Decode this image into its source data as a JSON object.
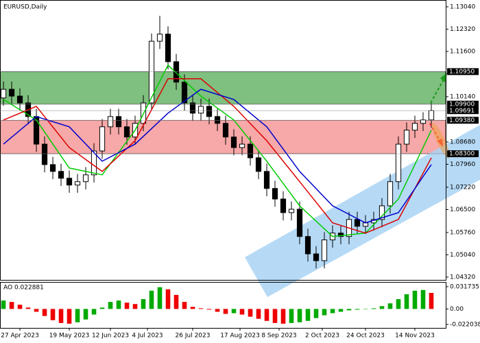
{
  "chart_data": {
    "type": "candlestick",
    "title": "EURUSD,Daily",
    "xlim": [
      -0.42,
      53.75
    ],
    "ylim": [
      1.0423,
      1.1326
    ],
    "open": [
      1.101,
      1.1038,
      1.1016,
      1.0994,
      1.095,
      1.0861,
      1.0795,
      1.0773,
      1.0751,
      1.0729,
      1.074,
      1.0762,
      1.0839,
      1.0917,
      1.095,
      1.0917,
      1.0884,
      1.0928,
      1.0994,
      1.1193,
      1.1216,
      1.1127,
      1.1061,
      1.0994,
      1.0961,
      1.0983,
      1.095,
      1.0928,
      1.0884,
      1.085,
      1.0861,
      1.0817,
      1.0773,
      1.0718,
      1.0684,
      1.064,
      1.0651,
      1.0563,
      1.0507,
      1.0485,
      1.0552,
      1.0574,
      1.0563,
      1.0618,
      1.0596,
      1.0607,
      1.0618,
      1.0662,
      1.074,
      1.0861,
      1.0906,
      1.0928,
      1.0939
    ],
    "high": [
      1.1063,
      1.1063,
      1.1041,
      1.1019,
      1.0975,
      1.0886,
      1.082,
      1.0798,
      1.0776,
      1.0765,
      1.0787,
      1.0864,
      1.0942,
      1.0975,
      1.0975,
      1.0942,
      1.0953,
      1.1019,
      1.1218,
      1.1275,
      1.1241,
      1.1152,
      1.1086,
      1.1019,
      1.1008,
      1.1008,
      1.0975,
      1.0953,
      1.0909,
      1.0886,
      1.0886,
      1.0842,
      1.0798,
      1.0743,
      1.0709,
      1.0676,
      1.0676,
      1.0588,
      1.0532,
      1.0577,
      1.0599,
      1.0599,
      1.0643,
      1.0643,
      1.0632,
      1.0643,
      1.0687,
      1.0765,
      1.0886,
      1.0931,
      1.0953,
      1.0964,
      1.0994
    ],
    "low": [
      1.0985,
      1.0991,
      1.0969,
      1.0925,
      1.0836,
      1.077,
      1.0748,
      1.0726,
      1.0704,
      1.0704,
      1.0715,
      1.0737,
      1.0814,
      1.0892,
      1.0892,
      1.0859,
      1.0859,
      1.0903,
      1.0969,
      1.1168,
      1.1102,
      1.1036,
      1.0969,
      1.0936,
      1.0936,
      1.0925,
      1.0903,
      1.0859,
      1.0825,
      1.0825,
      1.0792,
      1.0748,
      1.0693,
      1.0659,
      1.0615,
      1.0615,
      1.0538,
      1.0482,
      1.046,
      1.046,
      1.0527,
      1.0538,
      1.0538,
      1.0571,
      1.0571,
      1.0582,
      1.0593,
      1.0637,
      1.0715,
      1.0836,
      1.0881,
      1.0903,
      1.0914
    ],
    "close": [
      1.1038,
      1.1016,
      1.0994,
      1.095,
      1.0861,
      1.0795,
      1.0773,
      1.0751,
      1.0729,
      1.074,
      1.0762,
      1.0839,
      1.0917,
      1.095,
      1.0917,
      1.0884,
      1.0928,
      1.0994,
      1.1193,
      1.1216,
      1.1127,
      1.1061,
      1.0994,
      1.0961,
      1.0983,
      1.095,
      1.0928,
      1.0884,
      1.085,
      1.0861,
      1.0817,
      1.0773,
      1.0718,
      1.0684,
      1.064,
      1.0651,
      1.0563,
      1.0507,
      1.0485,
      1.0552,
      1.0574,
      1.0563,
      1.0618,
      1.0596,
      1.0607,
      1.0618,
      1.0662,
      1.074,
      1.0861,
      1.0906,
      1.0928,
      1.0939,
      1.0969
    ],
    "series": [
      {
        "color": "#00cc00",
        "x": [
          0,
          4,
          8,
          12,
          16,
          20,
          24,
          28,
          32,
          36,
          40,
          44,
          48,
          52
        ],
        "values": [
          1.1005,
          1.0939,
          1.0784,
          1.0762,
          1.0906,
          1.1116,
          1.1016,
          1.0939,
          1.0806,
          1.0662,
          1.0563,
          1.0574,
          1.0684,
          1.0906
        ]
      },
      {
        "color": "#dd0000",
        "x": [
          0,
          4,
          8,
          12,
          16,
          20,
          24,
          28,
          32,
          36,
          40,
          44,
          48,
          52
        ],
        "values": [
          1.0939,
          1.0983,
          1.085,
          1.0773,
          1.0872,
          1.1072,
          1.1072,
          1.0983,
          1.0872,
          1.074,
          1.0607,
          1.0574,
          1.0618,
          1.0817
        ]
      },
      {
        "color": "#0000cc",
        "x": [
          0,
          4,
          8,
          12,
          16,
          20,
          24,
          28,
          32,
          36,
          40,
          44,
          48,
          52
        ],
        "values": [
          1.0861,
          1.095,
          1.0917,
          1.0806,
          1.0861,
          1.0961,
          1.1038,
          1.1005,
          1.0917,
          1.0773,
          1.0662,
          1.0607,
          1.064,
          1.0795
        ]
      }
    ],
    "zones": [
      {
        "range": [
          1.099,
          1.1095
        ],
        "color": "#7fbf7f"
      },
      {
        "range": [
          1.083,
          1.0938
        ],
        "color": "#f7a8a8"
      }
    ],
    "yticks": [
      {
        "value": 1.1304,
        "label": "1.13040"
      },
      {
        "value": 1.1232,
        "label": "1.12320"
      },
      {
        "value": 1.116,
        "label": "1.11600"
      },
      {
        "value": 1.1014,
        "label": "1.10140"
      },
      {
        "value": 1.0868,
        "label": "1.08680"
      },
      {
        "value": 1.0796,
        "label": "1.07960"
      },
      {
        "value": 1.0722,
        "label": "1.07220"
      },
      {
        "value": 1.065,
        "label": "1.06500"
      },
      {
        "value": 1.0576,
        "label": "1.05760"
      },
      {
        "value": 1.0504,
        "label": "1.05040"
      },
      {
        "value": 1.0432,
        "label": "1.04320"
      }
    ],
    "levels": [
      {
        "value": 1.1095,
        "label": "1.10950"
      },
      {
        "value": 1.099,
        "label": "1.09900"
      },
      {
        "value": 1.09691,
        "label": "1.09691"
      },
      {
        "value": 1.0938,
        "label": "1.09380"
      },
      {
        "value": 1.083,
        "label": "1.08300"
      }
    ],
    "xticks": [
      {
        "value": 2,
        "label": "27 Apr 2023"
      },
      {
        "value": 8,
        "label": "19 May 2023"
      },
      {
        "value": 13,
        "label": "12 Jun 2023"
      },
      {
        "value": 17.5,
        "label": "4 Jul 2023"
      },
      {
        "value": 23,
        "label": "26 Jul 2023"
      },
      {
        "value": 28.75,
        "label": "17 Aug 2023"
      },
      {
        "value": 33.5,
        "label": "8 Sep 2023"
      },
      {
        "value": 38.75,
        "label": "2 Oct 2023"
      },
      {
        "value": 44,
        "label": "24 Oct 2023"
      },
      {
        "value": 50,
        "label": "14 Nov 2023"
      }
    ],
    "oscillator": {
      "label": "AO 0.022881",
      "up_color": "#00aa00",
      "down_color": "#ee0000",
      "values": [
        0.012,
        0.01,
        0.006,
        0.002,
        -0.004,
        -0.01,
        -0.016,
        -0.02,
        -0.021,
        -0.019,
        -0.015,
        -0.008,
        0.002,
        0.01,
        0.012,
        0.009,
        0.007,
        0.014,
        0.026,
        0.031,
        0.028,
        0.02,
        0.01,
        0.003,
        0.001,
        -0.001,
        -0.004,
        -0.007,
        -0.006,
        -0.008,
        -0.011,
        -0.014,
        -0.017,
        -0.02,
        -0.021,
        -0.02,
        -0.019,
        -0.017,
        -0.013,
        -0.009,
        -0.006,
        -0.004,
        -0.002,
        -0.001,
        0,
        0.001,
        0.004,
        0.008,
        0.014,
        0.021,
        0.026,
        0.027,
        0.022881
      ],
      "ylim": [
        -0.027,
        0.0375
      ],
      "yticks": [
        {
          "value": 0.031735,
          "label": "0.031735"
        },
        {
          "value": 0,
          "label": "0.00"
        },
        {
          "value": -0.022038,
          "label": "-0.022038"
        }
      ]
    }
  }
}
